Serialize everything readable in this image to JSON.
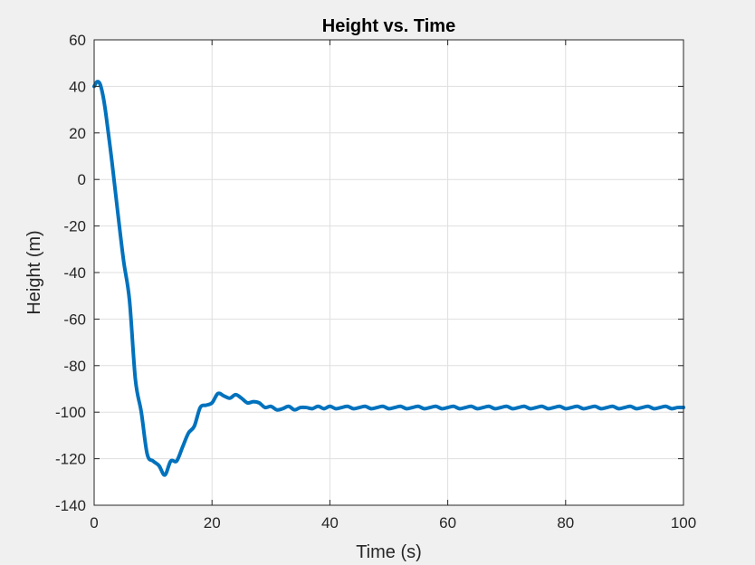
{
  "chart_data": {
    "type": "line",
    "title": "Height vs. Time",
    "xlabel": "Time (s)",
    "ylabel": "Height (m)",
    "xlim": [
      0,
      100
    ],
    "ylim": [
      -140,
      60
    ],
    "xticks": [
      0,
      20,
      40,
      60,
      80,
      100
    ],
    "yticks": [
      -140,
      -120,
      -100,
      -80,
      -60,
      -40,
      -20,
      0,
      20,
      40,
      60
    ],
    "grid": true,
    "line_color": "#0072BD",
    "series": [
      {
        "x": [
          0,
          0.5,
          1,
          1.5,
          2,
          3,
          4,
          5,
          6,
          7,
          8,
          9,
          10,
          11,
          12,
          13,
          14,
          15,
          16,
          17,
          18,
          19,
          20,
          21,
          22,
          23,
          24,
          25,
          26,
          27,
          28,
          29,
          30,
          31,
          32,
          33,
          34,
          35,
          36,
          37,
          38,
          39,
          40,
          41,
          42,
          43,
          44,
          45,
          46,
          47,
          48,
          49,
          50,
          51,
          52,
          53,
          54,
          55,
          56,
          57,
          58,
          59,
          60,
          61,
          62,
          63,
          64,
          65,
          66,
          67,
          68,
          69,
          70,
          71,
          72,
          73,
          74,
          75,
          76,
          77,
          78,
          79,
          80,
          81,
          82,
          83,
          84,
          85,
          86,
          87,
          88,
          89,
          90,
          91,
          92,
          93,
          94,
          95,
          96,
          97,
          98,
          99,
          100
        ],
        "y": [
          40,
          42,
          41,
          36,
          28,
          8,
          -14,
          -35,
          -52,
          -86,
          -100,
          -118,
          -121,
          -123,
          -127,
          -121,
          -121,
          -115,
          -109,
          -106,
          -98,
          -97,
          -96,
          -92,
          -93,
          -94,
          -92.5,
          -94,
          -96,
          -95.5,
          -96,
          -98,
          -97.5,
          -99,
          -98.5,
          -97.5,
          -99,
          -98,
          -98,
          -98.5,
          -97.5,
          -98.5,
          -97.5,
          -98.5,
          -98,
          -97.5,
          -98.5,
          -98,
          -97.5,
          -98.5,
          -98,
          -97.5,
          -98.5,
          -98,
          -97.5,
          -98.5,
          -98,
          -97.5,
          -98.5,
          -98,
          -97.5,
          -98.5,
          -98,
          -97.5,
          -98.5,
          -98,
          -97.5,
          -98.5,
          -98,
          -97.5,
          -98.5,
          -98,
          -97.5,
          -98.5,
          -98,
          -97.5,
          -98.5,
          -98,
          -97.5,
          -98.5,
          -98,
          -97.5,
          -98.5,
          -98,
          -97.5,
          -98.5,
          -98,
          -97.5,
          -98.5,
          -98,
          -97.5,
          -98.5,
          -98,
          -97.5,
          -98.5,
          -98,
          -97.5,
          -98.5,
          -98,
          -97.5,
          -98.5,
          -98,
          -98
        ]
      }
    ]
  }
}
